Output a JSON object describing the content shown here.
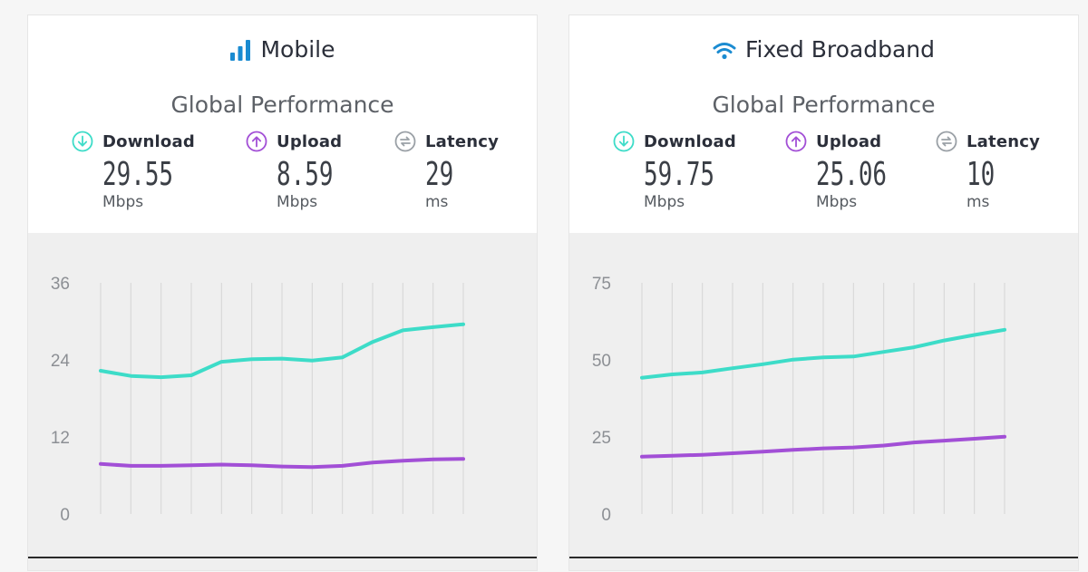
{
  "colors": {
    "download": "#3ddcc8",
    "upload": "#a24fd6",
    "latency": "#9aa0a6",
    "title_icon": "#1a8bd1"
  },
  "panels": [
    {
      "title": "Mobile",
      "title_icon": "signal-bars-icon",
      "section_title": "Global Performance",
      "metrics": {
        "download": {
          "label": "Download",
          "value": "29.55",
          "unit": "Mbps"
        },
        "upload": {
          "label": "Upload",
          "value": "8.59",
          "unit": "Mbps"
        },
        "latency": {
          "label": "Latency",
          "value": "29",
          "unit": "ms"
        }
      }
    },
    {
      "title": "Fixed Broadband",
      "title_icon": "wifi-icon",
      "section_title": "Global Performance",
      "metrics": {
        "download": {
          "label": "Download",
          "value": "59.75",
          "unit": "Mbps"
        },
        "upload": {
          "label": "Upload",
          "value": "25.06",
          "unit": "Mbps"
        },
        "latency": {
          "label": "Latency",
          "value": "10",
          "unit": "ms"
        }
      }
    }
  ],
  "chart_data": [
    {
      "type": "line",
      "title": "Mobile",
      "ylim": [
        0,
        36
      ],
      "yticks": [
        "0",
        "12",
        "24",
        "36"
      ],
      "x": [
        1,
        2,
        3,
        4,
        5,
        6,
        7,
        8,
        9,
        10,
        11,
        12,
        13
      ],
      "grid": true,
      "series": [
        {
          "name": "Download",
          "values": [
            22.3,
            21.5,
            21.3,
            21.6,
            23.7,
            24.1,
            24.2,
            23.9,
            24.4,
            26.8,
            28.6,
            29.1,
            29.55
          ]
        },
        {
          "name": "Upload",
          "values": [
            7.8,
            7.5,
            7.5,
            7.6,
            7.7,
            7.6,
            7.4,
            7.3,
            7.5,
            8.0,
            8.3,
            8.5,
            8.59
          ]
        }
      ]
    },
    {
      "type": "line",
      "title": "Fixed Broadband",
      "ylim": [
        0,
        75
      ],
      "yticks": [
        "0",
        "25",
        "50",
        "75"
      ],
      "x": [
        1,
        2,
        3,
        4,
        5,
        6,
        7,
        8,
        9,
        10,
        11,
        12,
        13
      ],
      "grid": true,
      "series": [
        {
          "name": "Download",
          "values": [
            44.2,
            45.3,
            45.9,
            47.3,
            48.6,
            50.1,
            50.8,
            51.1,
            52.6,
            54.1,
            56.3,
            58.1,
            59.75
          ]
        },
        {
          "name": "Upload",
          "values": [
            18.6,
            18.9,
            19.2,
            19.7,
            20.2,
            20.8,
            21.3,
            21.6,
            22.2,
            23.2,
            23.8,
            24.4,
            25.06
          ]
        }
      ]
    }
  ]
}
